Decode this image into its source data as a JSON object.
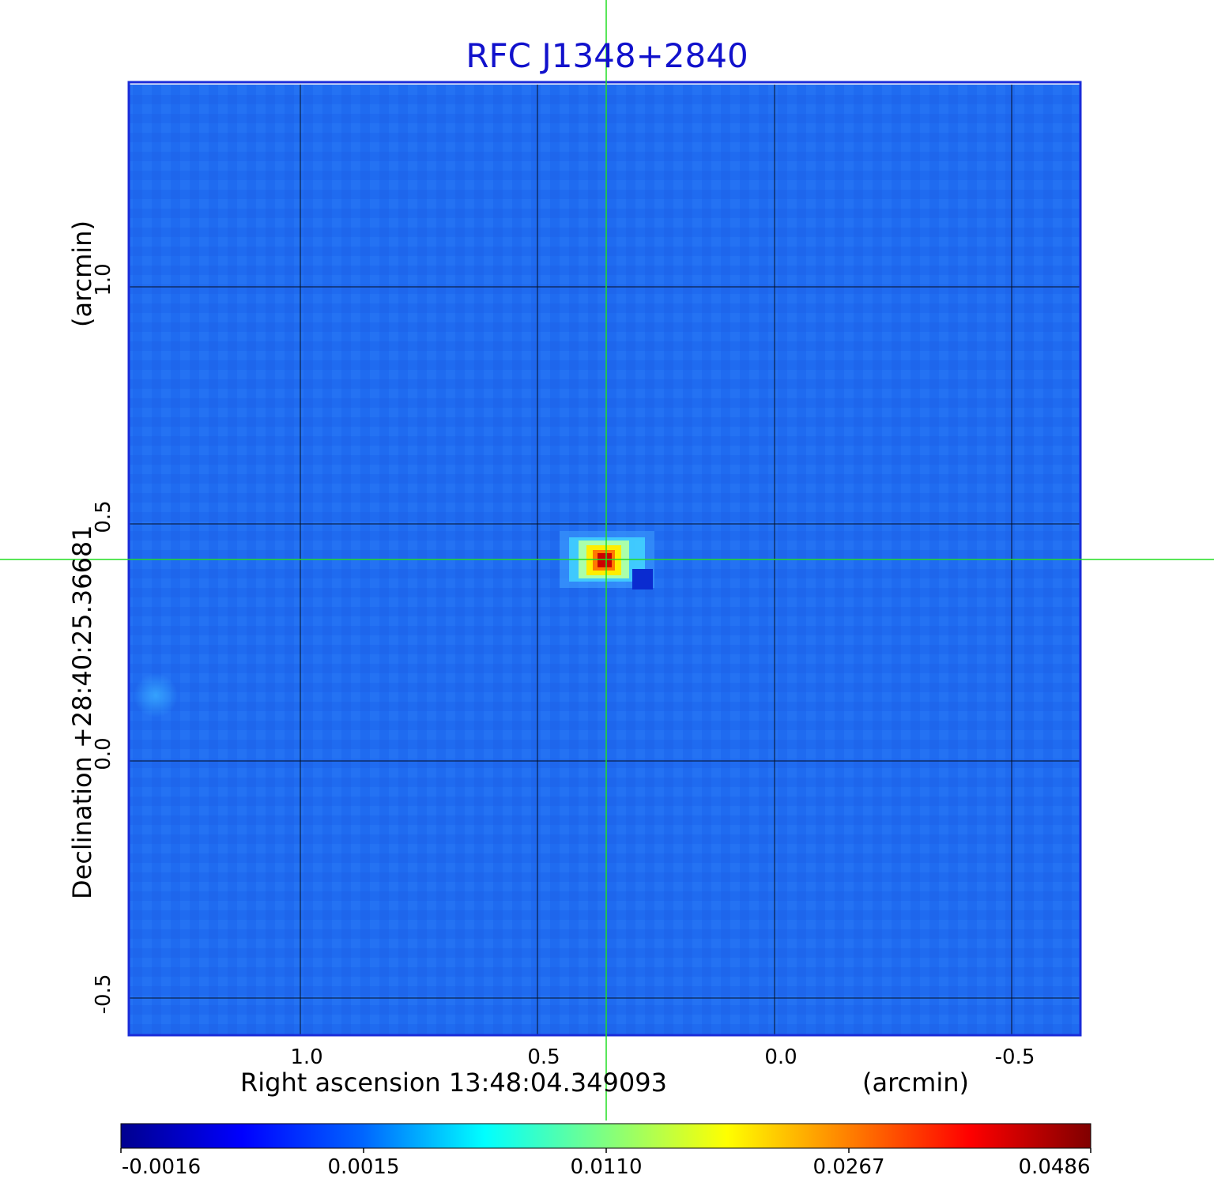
{
  "title": "RFC J1348+2840",
  "x_axis": {
    "label": "Right ascension  13:48:04.349093",
    "unit": "(arcmin)",
    "ticks": [
      "1.0",
      "0.5",
      "0.0",
      "-0.5"
    ]
  },
  "y_axis": {
    "label": "Declination  +28:40:25.36681",
    "unit": "(arcmin)",
    "ticks": [
      "1.0",
      "0.5",
      "0.0",
      "-0.5"
    ]
  },
  "colorbar": {
    "ticks": [
      "-0.0016",
      "0.0015",
      "0.0110",
      "0.0267",
      "0.0486"
    ],
    "colormap": [
      "#00008f",
      "#0000ff",
      "#0066ff",
      "#00ffff",
      "#80ff80",
      "#ffff00",
      "#ff8000",
      "#ff0000",
      "#800000"
    ]
  },
  "image": {
    "background_color": "#1f6bf0",
    "source_peak_color": "#cc0000",
    "frame_color": "#1a2cd9",
    "grid_color": "#000000",
    "crosshair_color": "#22dd22"
  }
}
